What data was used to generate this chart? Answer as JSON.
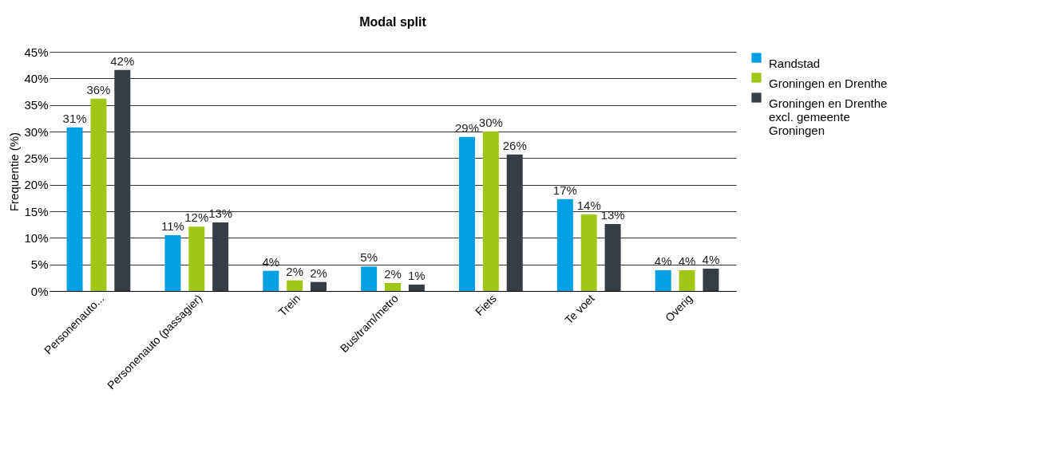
{
  "chart_data": {
    "type": "bar",
    "title": "Modal split",
    "ylabel": "Frequentie (%)",
    "categories": [
      "Personenauto...",
      "Personenauto (passagier)",
      "Trein",
      "Bus/tram/metro",
      "Fiets",
      "Te voet",
      "Overig"
    ],
    "series": [
      {
        "name": "Randstad",
        "color": "#00a0e3",
        "values": [
          30.8,
          10.5,
          3.8,
          4.6,
          29.0,
          17.3,
          3.9
        ],
        "value_labels": [
          "31%",
          "11%",
          "4%",
          "5%",
          "29%",
          "17%",
          "4%"
        ]
      },
      {
        "name": "Groningen en Drenthe",
        "color": "#a2c617",
        "values": [
          36.2,
          12.1,
          2.0,
          1.5,
          30.0,
          14.4,
          3.9
        ],
        "value_labels": [
          "36%",
          "12%",
          "2%",
          "2%",
          "30%",
          "14%",
          "4%"
        ]
      },
      {
        "name": "Groningen en Drenthe excl. gemeente Groningen",
        "color": "#373d45",
        "values": [
          41.6,
          12.9,
          1.7,
          1.2,
          25.7,
          12.6,
          4.2
        ],
        "value_labels": [
          "42%",
          "13%",
          "2%",
          "1%",
          "26%",
          "13%",
          "4%"
        ]
      }
    ],
    "ylim": [
      0,
      45
    ],
    "yticks": [
      {
        "value": 0,
        "label": "0%"
      },
      {
        "value": 5,
        "label": "5%"
      },
      {
        "value": 10,
        "label": "10%"
      },
      {
        "value": 15,
        "label": "15%"
      },
      {
        "value": 20,
        "label": "20%"
      },
      {
        "value": 25,
        "label": "25%"
      },
      {
        "value": 30,
        "label": "30%"
      },
      {
        "value": 35,
        "label": "35%"
      },
      {
        "value": 40,
        "label": "40%"
      },
      {
        "value": 45,
        "label": "45%"
      }
    ],
    "grid": "y",
    "legend": "top right"
  }
}
